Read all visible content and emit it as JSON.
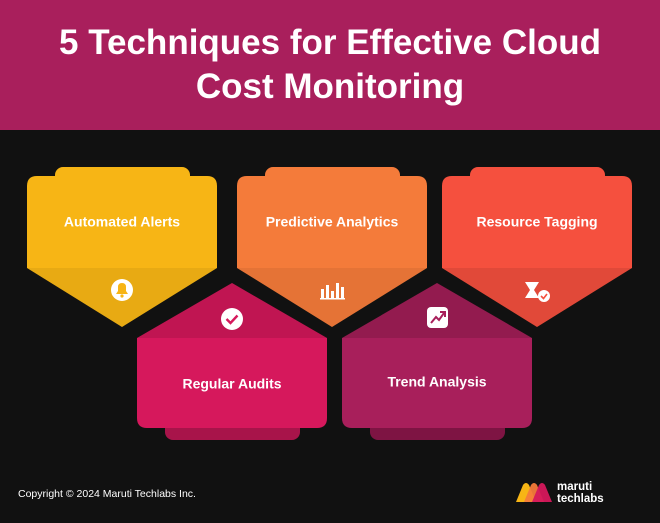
{
  "header": {
    "title": "5 Techniques for Effective Cloud Cost Monitoring"
  },
  "techniques": [
    {
      "label": "Automated Alerts"
    },
    {
      "label": "Predictive Analytics"
    },
    {
      "label": "Resource Tagging"
    },
    {
      "label": "Regular Audits"
    },
    {
      "label": "Trend Analysis"
    }
  ],
  "footer": {
    "copyright": "Copyright © 2024 Maruti Techlabs Inc.",
    "logo": {
      "line1": "maruti",
      "line2": "techlabs"
    }
  }
}
